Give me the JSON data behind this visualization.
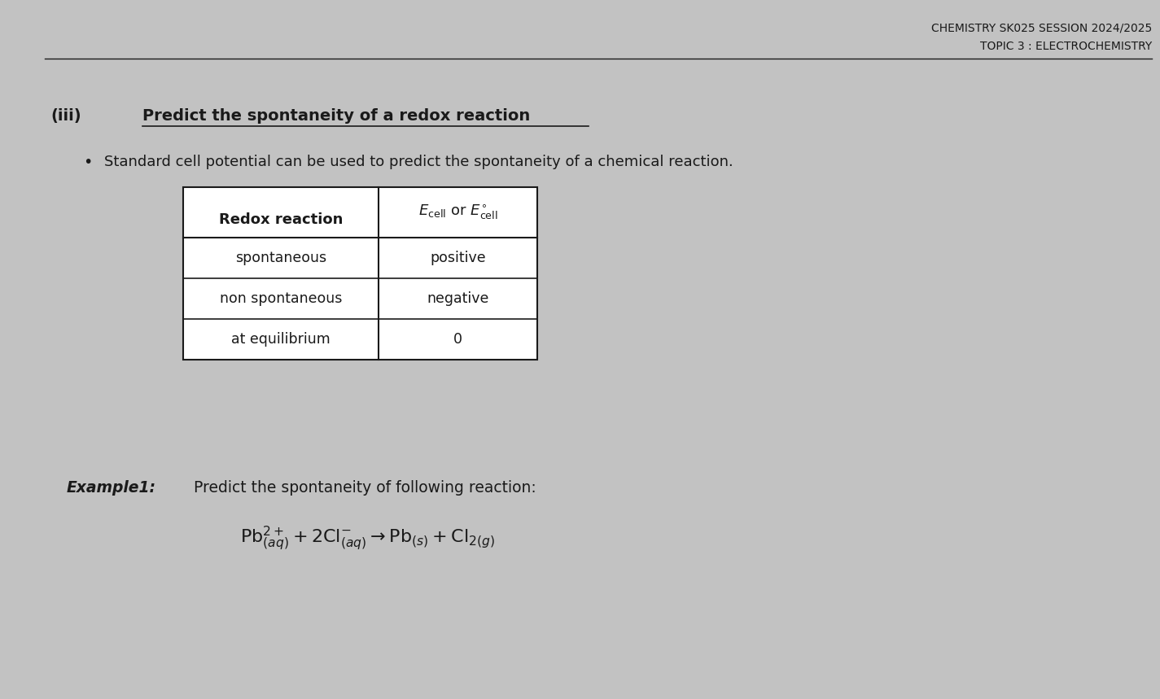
{
  "bg_color": "#c8c8c8",
  "header_line1": "CHEMISTRY SK025 SESSION 2024/2025",
  "header_line2": "TOPIC 3 : ELECTROCHEMISTRY",
  "section_label": "(iii)",
  "section_title": "Predict the spontaneity of a redox reaction",
  "bullet_text": "Standard cell potential can be used to predict the spontaneity of a chemical reaction.",
  "table_header_col1": "Redox reaction",
  "table_rows": [
    [
      "spontaneous",
      "positive"
    ],
    [
      "non spontaneous",
      "negative"
    ],
    [
      "at equilibrium",
      "0"
    ]
  ],
  "example_label": "Example1:",
  "example_text": "Predict the spontaneity of following reaction:",
  "font_color": "#1a1a1a"
}
